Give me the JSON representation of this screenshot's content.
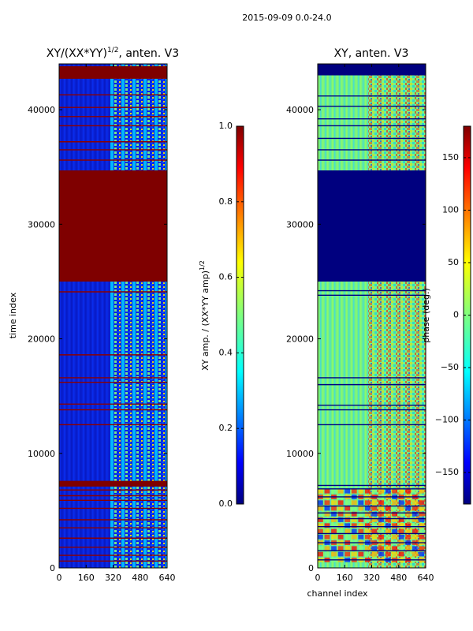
{
  "figure": {
    "suptitle": "2015-09-09 0.0-24.0"
  },
  "chart_data": [
    {
      "type": "heatmap",
      "title": "XY/(XX*YY)^{1/2}, anten. V3",
      "title_parts": {
        "pre": "XY/(XX*YY)",
        "sup": "1/2",
        "post": ", anten. V3"
      },
      "xlabel": "",
      "ylabel": "time index",
      "xlim": [
        0,
        640
      ],
      "ylim": [
        0,
        44000
      ],
      "xticks": [
        0,
        160,
        320,
        480,
        640
      ],
      "yticks": [
        0,
        10000,
        20000,
        30000,
        40000
      ],
      "xtick_labels": [
        "0",
        "160",
        "320",
        "480",
        "640"
      ],
      "ytick_labels": [
        "0",
        "10000",
        "20000",
        "30000",
        "40000"
      ],
      "colormap": "jet",
      "colorbar": {
        "label": "XY amp. / (XX*YY amp)^{1/2}",
        "label_parts": {
          "pre": "XY amp. / (XX*YY amp)",
          "sup": "1/2"
        },
        "range": [
          0.0,
          1.0
        ],
        "ticks": [
          0.0,
          0.2,
          0.4,
          0.6,
          0.8,
          1.0
        ],
        "tick_labels": [
          "0.0",
          "0.2",
          "0.4",
          "0.6",
          "0.8",
          "1.0"
        ]
      },
      "saturated_time_bands": [
        [
          25000,
          34700
        ],
        [
          42700,
          43800
        ],
        [
          7100,
          7600
        ]
      ],
      "flagged_time_rows": [
        600,
        1100,
        1800,
        2600,
        3500,
        4200,
        5200,
        5900,
        6300,
        6800,
        12500,
        13800,
        14300,
        16200,
        16600,
        18600,
        24100,
        35600,
        36500,
        37200,
        38600,
        39400,
        40200,
        41300
      ],
      "active_channel_range": [
        300,
        640
      ]
    },
    {
      "type": "heatmap",
      "title": "XY, anten. V3",
      "xlabel": "channel index",
      "ylabel": "",
      "xlim": [
        0,
        640
      ],
      "ylim": [
        0,
        44000
      ],
      "xticks": [
        0,
        160,
        320,
        480,
        640
      ],
      "yticks": [
        0,
        10000,
        20000,
        30000,
        40000
      ],
      "xtick_labels": [
        "0",
        "160",
        "320",
        "480",
        "640"
      ],
      "ytick_labels": [
        "0",
        "10000",
        "20000",
        "30000",
        "40000"
      ],
      "colormap": "jet",
      "colorbar": {
        "label": "phase (deg.)",
        "range": [
          -180,
          180
        ],
        "ticks": [
          -150,
          -100,
          -50,
          0,
          50,
          100,
          150
        ],
        "tick_labels": [
          "−150",
          "−100",
          "−50",
          "0",
          "50",
          "100",
          "150"
        ]
      },
      "blank_time_bands": [
        [
          25000,
          34700
        ],
        [
          43000,
          44000
        ]
      ],
      "flagged_time_rows": [
        700,
        1500,
        2200,
        3000,
        3600,
        4300,
        4800,
        5400,
        6200,
        6900,
        7200,
        12500,
        13800,
        14200,
        16000,
        16600,
        23800,
        24200,
        35600,
        36500,
        37500,
        38600,
        39200,
        40300,
        41200
      ]
    }
  ]
}
